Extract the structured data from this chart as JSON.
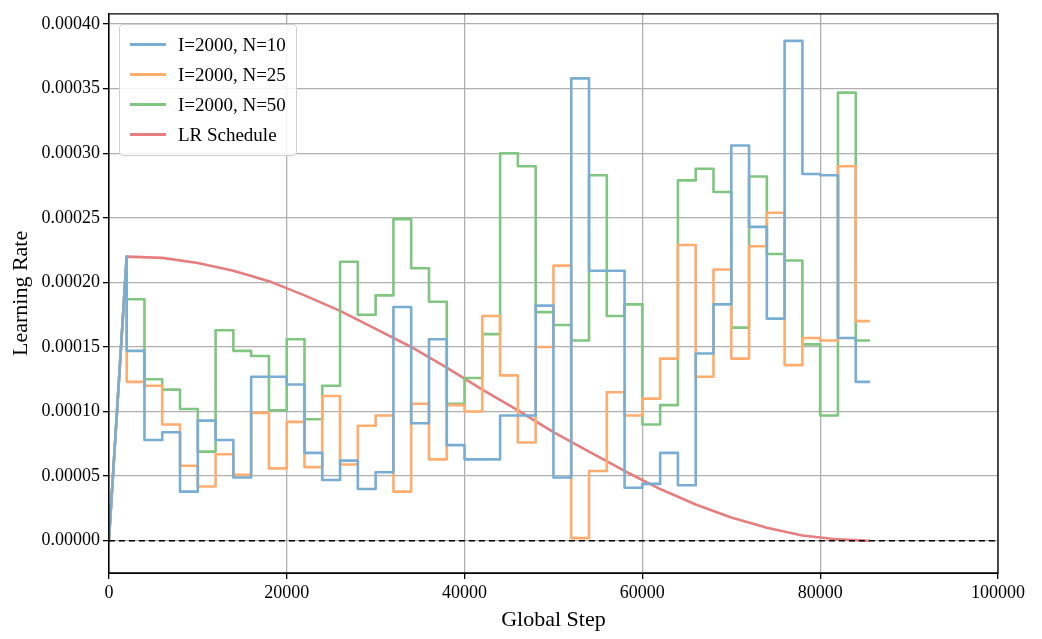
{
  "chart_data": {
    "type": "line",
    "xlabel": "Global Step",
    "ylabel": "Learning Rate",
    "x": [
      0,
      2000,
      2000,
      4000,
      4000,
      6000,
      6000,
      8000,
      8000,
      10000,
      10000,
      12000,
      12000,
      14000,
      14000,
      16000,
      16000,
      18000,
      18000,
      20000,
      20000,
      22000,
      22000,
      24000,
      24000,
      26000,
      26000,
      28000,
      28000,
      30000,
      30000,
      32000,
      32000,
      34000,
      34000,
      36000,
      36000,
      38000,
      38000,
      40000,
      40000,
      42000,
      42000,
      44000,
      44000,
      46000,
      46000,
      48000,
      48000,
      50000,
      50000,
      52000,
      52000,
      54000,
      54000,
      56000,
      56000,
      58000,
      58000,
      60000,
      60000,
      62000,
      62000,
      64000,
      64000,
      66000,
      66000,
      68000,
      68000,
      70000,
      70000,
      72000,
      72000,
      74000,
      74000,
      76000,
      76000,
      78000,
      78000,
      80000,
      80000,
      82000,
      82000,
      84000,
      84000,
      85500
    ],
    "series": [
      {
        "name": "I=2000, N=10",
        "color": "#79add2",
        "values": [
          0,
          0.00022,
          0.000147,
          0.000147,
          7.8e-05,
          7.8e-05,
          8.4e-05,
          8.4e-05,
          3.8e-05,
          3.8e-05,
          9.3e-05,
          9.3e-05,
          7.8e-05,
          7.8e-05,
          4.9e-05,
          4.9e-05,
          0.000127,
          0.000127,
          0.000127,
          0.000127,
          0.000121,
          0.000121,
          6.8e-05,
          6.8e-05,
          4.7e-05,
          4.7e-05,
          6.2e-05,
          6.2e-05,
          4e-05,
          4e-05,
          5.3e-05,
          5.3e-05,
          0.000181,
          0.000181,
          9.1e-05,
          9.1e-05,
          0.000156,
          0.000156,
          7.4e-05,
          7.4e-05,
          6.3e-05,
          6.3e-05,
          6.3e-05,
          6.3e-05,
          9.7e-05,
          9.7e-05,
          9.7e-05,
          9.7e-05,
          0.000182,
          0.000182,
          4.9e-05,
          4.9e-05,
          0.000358,
          0.000358,
          0.000209,
          0.000209,
          0.000209,
          0.000209,
          4.1e-05,
          4.1e-05,
          4.4e-05,
          4.4e-05,
          6.8e-05,
          6.8e-05,
          4.3e-05,
          4.3e-05,
          0.000145,
          0.000145,
          0.000183,
          0.000183,
          0.000306,
          0.000306,
          0.000243,
          0.000243,
          0.000172,
          0.000172,
          0.000387,
          0.000387,
          0.000284,
          0.000284,
          0.000283,
          0.000283,
          0.000157,
          0.000157,
          0.000123,
          0.000123
        ]
      },
      {
        "name": "I=2000, N=25",
        "color": "#ffad6e",
        "values": [
          0,
          0.00022,
          0.000123,
          0.000123,
          0.00012,
          0.00012,
          9e-05,
          9e-05,
          5.8e-05,
          5.8e-05,
          4.2e-05,
          4.2e-05,
          6.7e-05,
          6.7e-05,
          5.1e-05,
          5.1e-05,
          9.9e-05,
          9.9e-05,
          5.6e-05,
          5.6e-05,
          9.2e-05,
          9.2e-05,
          5.7e-05,
          5.7e-05,
          0.000112,
          0.000112,
          5.9e-05,
          5.9e-05,
          8.9e-05,
          8.9e-05,
          9.7e-05,
          9.7e-05,
          3.8e-05,
          3.8e-05,
          0.000106,
          0.000106,
          6.3e-05,
          6.3e-05,
          0.000105,
          0.000105,
          0.0001,
          0.0001,
          0.000174,
          0.000174,
          0.000128,
          0.000128,
          7.6e-05,
          7.6e-05,
          0.00015,
          0.00015,
          0.000213,
          0.000213,
          2e-06,
          2e-06,
          5.4e-05,
          5.4e-05,
          0.000115,
          0.000115,
          9.7e-05,
          9.7e-05,
          0.00011,
          0.00011,
          0.000141,
          0.000141,
          0.000229,
          0.000229,
          0.000127,
          0.000127,
          0.00021,
          0.00021,
          0.000141,
          0.000141,
          0.000228,
          0.000228,
          0.000254,
          0.000254,
          0.000136,
          0.000136,
          0.000157,
          0.000157,
          0.000155,
          0.000155,
          0.00029,
          0.00029,
          0.00017,
          0.00017
        ]
      },
      {
        "name": "I=2000, N=50",
        "color": "#80c680",
        "values": [
          0,
          0.00022,
          0.000187,
          0.000187,
          0.000125,
          0.000125,
          0.000117,
          0.000117,
          0.000102,
          0.000102,
          6.9e-05,
          6.9e-05,
          0.000163,
          0.000163,
          0.000147,
          0.000147,
          0.000143,
          0.000143,
          0.000101,
          0.000101,
          0.000156,
          0.000156,
          9.4e-05,
          9.4e-05,
          0.00012,
          0.00012,
          0.000216,
          0.000216,
          0.000175,
          0.000175,
          0.00019,
          0.00019,
          0.000249,
          0.000249,
          0.000211,
          0.000211,
          0.000185,
          0.000185,
          0.000106,
          0.000106,
          0.000126,
          0.000126,
          0.00016,
          0.00016,
          0.0003,
          0.0003,
          0.00029,
          0.00029,
          0.000177,
          0.000177,
          0.000167,
          0.000167,
          0.000155,
          0.000155,
          0.000283,
          0.000283,
          0.000174,
          0.000174,
          0.000183,
          0.000183,
          9e-05,
          9e-05,
          0.000105,
          0.000105,
          0.000279,
          0.000279,
          0.000288,
          0.000288,
          0.00027,
          0.00027,
          0.000165,
          0.000165,
          0.000282,
          0.000282,
          0.000222,
          0.000222,
          0.000217,
          0.000217,
          0.000152,
          0.000152,
          9.7e-05,
          9.7e-05,
          0.000347,
          0.000347,
          0.000155,
          0.000155
        ]
      },
      {
        "name": "LR Schedule",
        "color": "#e67d7e",
        "x": [
          0,
          2000,
          6000,
          10000,
          14000,
          18000,
          22000,
          26000,
          30000,
          34000,
          38000,
          42000,
          46000,
          50000,
          54000,
          58000,
          62000,
          66000,
          70000,
          74000,
          78000,
          82000,
          85500
        ],
        "values": [
          0,
          0.00022,
          0.000219,
          0.000215,
          0.000209,
          0.000201,
          0.00019,
          0.000178,
          0.000164,
          0.00015,
          0.000134,
          0.000117,
          0.000101,
          8.4e-05,
          6.9e-05,
          5.4e-05,
          4e-05,
          2.8e-05,
          1.8e-05,
          1e-05,
          4e-06,
          1e-06,
          0
        ]
      }
    ],
    "xlim": [
      0,
      100000
    ],
    "xticks": [
      0,
      20000,
      40000,
      60000,
      80000,
      100000
    ],
    "ylim": [
      -2.5e-05,
      0.000408
    ],
    "yticks": [
      {
        "value": 0,
        "label": "0.00000"
      },
      {
        "value": 5e-05,
        "label": "0.00005"
      },
      {
        "value": 0.0001,
        "label": "0.00010"
      },
      {
        "value": 0.00015,
        "label": "0.00015"
      },
      {
        "value": 0.0002,
        "label": "0.00020"
      },
      {
        "value": 0.00025,
        "label": "0.00025"
      },
      {
        "value": 0.0003,
        "label": "0.00030"
      },
      {
        "value": 0.00035,
        "label": "0.00035"
      },
      {
        "value": 0.0004,
        "label": "0.00040"
      }
    ],
    "ref_lines": [
      {
        "axis": "y",
        "value": 0,
        "color": "#000000",
        "line_style": "dashed"
      }
    ],
    "grid": true,
    "legend": "top left",
    "marker": "none"
  }
}
